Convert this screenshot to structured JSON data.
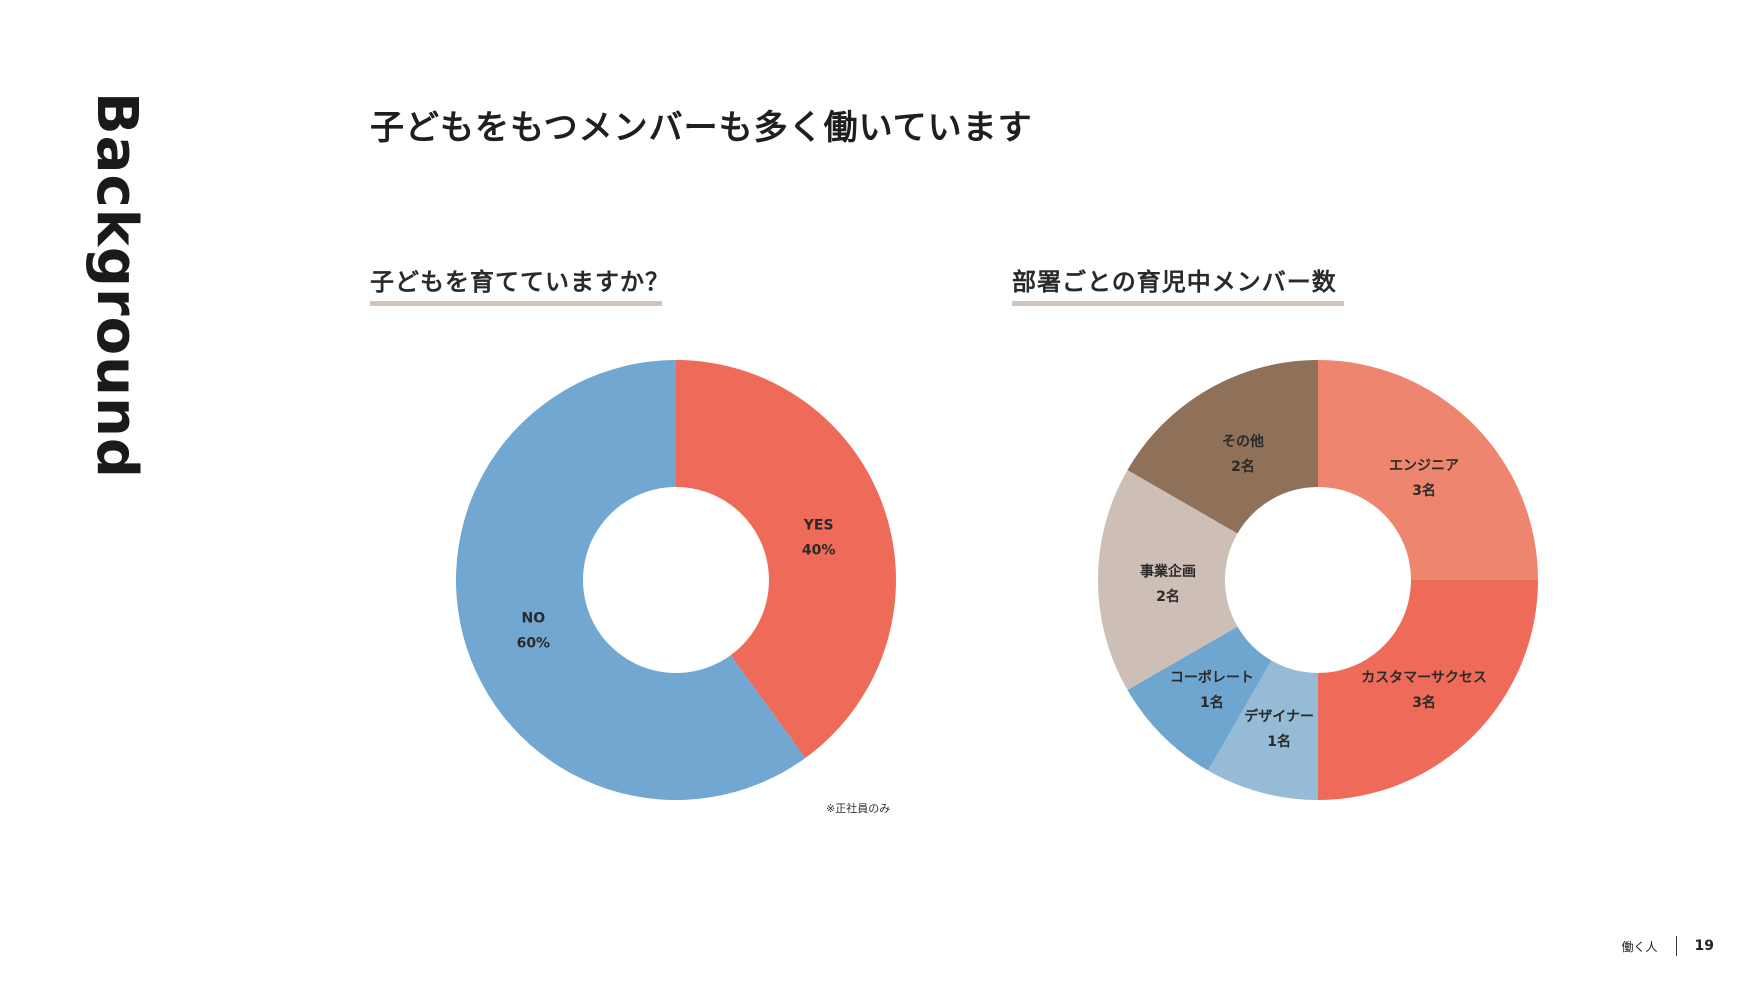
{
  "side_title": "Background",
  "page_title": "子どもをもつメンバーも多く働いています",
  "left_section": {
    "title": "子どもを育てていますか？"
  },
  "right_section": {
    "title": "部署ごとの育児中メンバー数"
  },
  "note": "※正社員のみ",
  "footer": {
    "label": "働く人",
    "page_number": "19"
  },
  "chart_data": [
    {
      "type": "pie",
      "donut": true,
      "slices": [
        {
          "name": "YES",
          "value": 40,
          "label": "40%",
          "color": "#ef6b59"
        },
        {
          "name": "NO",
          "value": 60,
          "label": "60%",
          "color": "#71a7d0"
        }
      ]
    },
    {
      "type": "pie",
      "donut": true,
      "slices": [
        {
          "name": "エンジニア",
          "value": 3,
          "label": "3名",
          "color": "#ee856f"
        },
        {
          "name": "カスタマーサクセス",
          "value": 3,
          "label": "3名",
          "color": "#ef6b59"
        },
        {
          "name": "デザイナー",
          "value": 1,
          "label": "1名",
          "color": "#96bbd6"
        },
        {
          "name": "コーポレート",
          "value": 1,
          "label": "1名",
          "color": "#6fa6cf"
        },
        {
          "name": "事業企画",
          "value": 2,
          "label": "2名",
          "color": "#cdbfb6"
        },
        {
          "name": "その他",
          "value": 2,
          "label": "2名",
          "color": "#8f7059"
        }
      ]
    }
  ]
}
